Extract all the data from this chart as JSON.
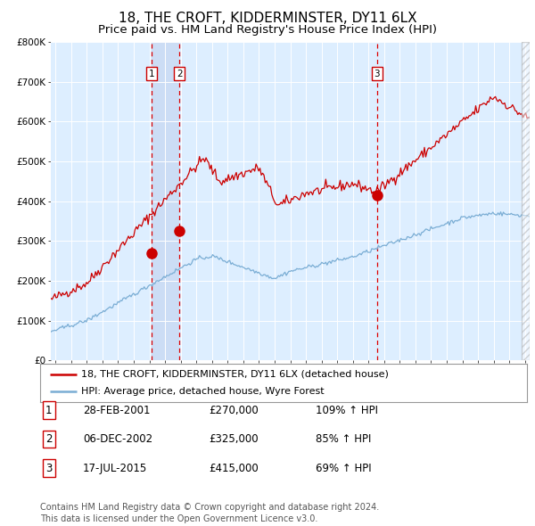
{
  "title": "18, THE CROFT, KIDDERMINSTER, DY11 6LX",
  "subtitle": "Price paid vs. HM Land Registry's House Price Index (HPI)",
  "ylim": [
    0,
    800000
  ],
  "yticks": [
    0,
    100000,
    200000,
    300000,
    400000,
    500000,
    600000,
    700000,
    800000
  ],
  "ytick_labels": [
    "£0",
    "£100K",
    "£200K",
    "£300K",
    "£400K",
    "£500K",
    "£600K",
    "£700K",
    "£800K"
  ],
  "xlim_start": 1994.7,
  "xlim_end": 2025.3,
  "plot_bg_color": "#ddeeff",
  "grid_color": "#ffffff",
  "red_line_color": "#cc0000",
  "blue_line_color": "#7aadd4",
  "transaction1_x": 2001.15,
  "transaction1_y": 270000,
  "transaction2_x": 2002.92,
  "transaction2_y": 325000,
  "transaction3_x": 2015.54,
  "transaction3_y": 415000,
  "vline_color": "#dd0000",
  "shade_color": "#ccddf5",
  "legend_line1": "18, THE CROFT, KIDDERMINSTER, DY11 6LX (detached house)",
  "legend_line2": "HPI: Average price, detached house, Wyre Forest",
  "table_rows": [
    [
      "1",
      "28-FEB-2001",
      "£270,000",
      "109% ↑ HPI"
    ],
    [
      "2",
      "06-DEC-2002",
      "£325,000",
      "85% ↑ HPI"
    ],
    [
      "3",
      "17-JUL-2015",
      "£415,000",
      "69% ↑ HPI"
    ]
  ],
  "footer": "Contains HM Land Registry data © Crown copyright and database right 2024.\nThis data is licensed under the Open Government Licence v3.0.",
  "title_fontsize": 11,
  "subtitle_fontsize": 9.5,
  "tick_fontsize": 7.5,
  "legend_fontsize": 8,
  "table_fontsize": 8.5,
  "footer_fontsize": 7
}
